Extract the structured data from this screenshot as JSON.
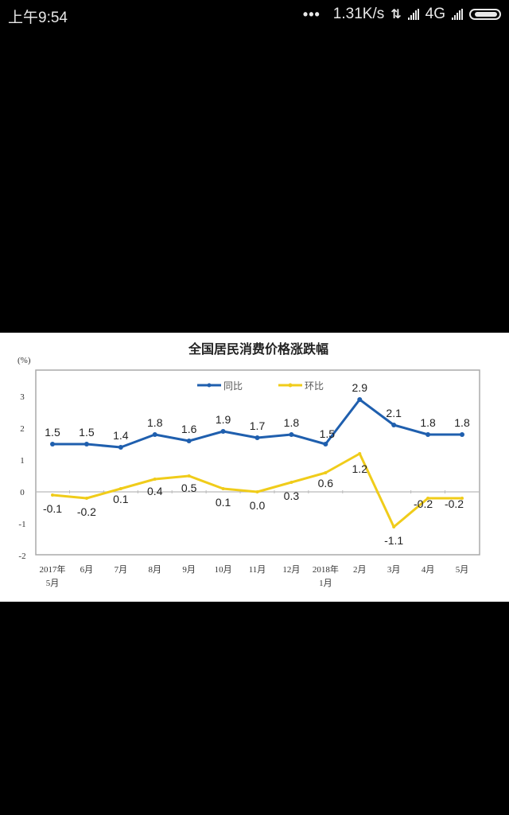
{
  "status_bar": {
    "time": "上午9:54",
    "more": "•••",
    "net_speed": "1.31K/s",
    "data_arrows": "⇅",
    "network": "4G",
    "icons": [
      "more-dots-icon",
      "data-transfer-icon",
      "signal-icon",
      "signal-icon",
      "battery-icon"
    ]
  },
  "chart_data": {
    "type": "line",
    "title": "全国居民消费价格涨跌幅",
    "ylabel": "(%)",
    "xlabel": "",
    "ylim": [
      -2,
      3
    ],
    "yticks": [
      "3",
      "2",
      "1",
      "0",
      "-1",
      "-2"
    ],
    "categories": [
      "2017年5月",
      "6月",
      "7月",
      "8月",
      "9月",
      "10月",
      "11月",
      "12月",
      "2018年1月",
      "2月",
      "3月",
      "4月",
      "5月"
    ],
    "category_labels_line1": [
      "2017年",
      "6月",
      "7月",
      "8月",
      "9月",
      "10月",
      "11月",
      "12月",
      "2018年",
      "2月",
      "3月",
      "4月",
      "5月"
    ],
    "category_labels_line2": [
      "5月",
      "",
      "",
      "",
      "",
      "",
      "",
      "",
      "1月",
      "",
      "",
      "",
      ""
    ],
    "series": [
      {
        "name": "同比",
        "color": "#1f5fae",
        "values": [
          1.5,
          1.5,
          1.4,
          1.8,
          1.6,
          1.9,
          1.7,
          1.8,
          1.5,
          2.9,
          2.1,
          1.8,
          1.8
        ],
        "labels": [
          "1.5",
          "1.5",
          "1.4",
          "1.8",
          "1.6",
          "1.9",
          "1.7",
          "1.8",
          "1.5",
          "2.9",
          "2.1",
          "1.8",
          "1.8"
        ]
      },
      {
        "name": "环比",
        "color": "#f0cc1a",
        "values": [
          -0.1,
          -0.2,
          0.1,
          0.4,
          0.5,
          0.1,
          0.0,
          0.3,
          0.6,
          1.2,
          -1.1,
          -0.2,
          -0.2
        ],
        "labels": [
          "-0.1",
          "-0.2",
          "0.1",
          "0.4",
          "0.5",
          "0.1",
          "0.0",
          "0.3",
          "0.6",
          "1.2",
          "-1.1",
          "-0.2",
          "-0.2"
        ]
      }
    ],
    "legend_position": "top-center",
    "grid": false
  }
}
